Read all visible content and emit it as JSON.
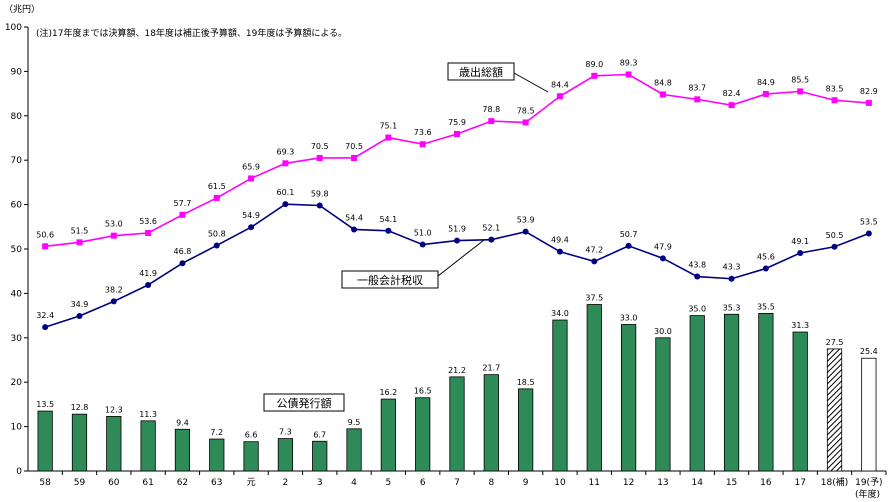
{
  "chart_data": {
    "type": "bar+line",
    "unit_label": "（兆円）",
    "note": "(注)17年度までは決算額、18年度は補正後予算額、19年度は予算額による。",
    "x_axis_unit": "(年度)",
    "ylim": [
      0,
      100
    ],
    "yticks": [
      "0",
      "10",
      "20",
      "30",
      "40",
      "50",
      "60",
      "70",
      "80",
      "90",
      "100"
    ],
    "grid": false,
    "categories": [
      "58",
      "59",
      "60",
      "61",
      "62",
      "63",
      "元",
      "2",
      "3",
      "4",
      "5",
      "6",
      "7",
      "8",
      "9",
      "10",
      "11",
      "12",
      "13",
      "14",
      "15",
      "16",
      "17",
      "18(補)",
      "19(予)"
    ],
    "series": [
      {
        "name": "歳出総額",
        "kind": "line",
        "color": "#ff00ff",
        "marker": "square",
        "values": [
          50.6,
          51.5,
          53.0,
          53.6,
          57.7,
          61.5,
          65.9,
          69.3,
          70.5,
          70.5,
          75.1,
          73.6,
          75.9,
          78.8,
          78.5,
          84.4,
          89.0,
          89.3,
          84.8,
          83.7,
          82.4,
          84.9,
          85.5,
          83.5,
          82.9
        ],
        "labels": [
          "50.6",
          "51.5",
          "53.0",
          "53.6",
          "57.7",
          "61.5",
          "65.9",
          "69.3",
          "70.5",
          "70.5",
          "75.1",
          "73.6",
          "75.9",
          "78.8",
          "78.5",
          "84.4",
          "89.0",
          "89.3",
          "84.8",
          "83.7",
          "82.4",
          "84.9",
          "85.5",
          "83.5",
          "82.9"
        ]
      },
      {
        "name": "一般会計税収",
        "kind": "line",
        "color": "#000080",
        "marker": "circle",
        "values": [
          32.4,
          34.9,
          38.2,
          41.9,
          46.8,
          50.8,
          54.9,
          60.1,
          59.8,
          54.4,
          54.1,
          51.0,
          51.9,
          52.1,
          53.9,
          49.4,
          47.2,
          50.7,
          47.9,
          43.8,
          43.3,
          45.6,
          49.1,
          50.5,
          53.5
        ],
        "labels": [
          "32.4",
          "34.9",
          "38.2",
          "41.9",
          "46.8",
          "50.8",
          "54.9",
          "60.1",
          "59.8",
          "54.4",
          "54.1",
          "51.0",
          "51.9",
          "52.1",
          "53.9",
          "49.4",
          "47.2",
          "50.7",
          "47.9",
          "43.8",
          "43.3",
          "45.6",
          "49.1",
          "50.5",
          "53.5"
        ]
      },
      {
        "name": "公債発行額",
        "kind": "bar",
        "color": "#2e8b57",
        "values": [
          13.5,
          12.8,
          12.3,
          11.3,
          9.4,
          7.2,
          6.6,
          7.3,
          6.7,
          9.5,
          16.2,
          16.5,
          21.2,
          21.7,
          18.5,
          34.0,
          37.5,
          33.0,
          30.0,
          35.0,
          35.3,
          35.5,
          31.3,
          27.5,
          25.4
        ],
        "labels": [
          "13.5",
          "12.8",
          "12.3",
          "11.3",
          "9.4",
          "7.2",
          "6.6",
          "7.3",
          "6.7",
          "9.5",
          "16.2",
          "16.5",
          "21.2",
          "21.7",
          "18.5",
          "34.0",
          "37.5",
          "33.0",
          "30.0",
          "35.0",
          "35.3",
          "35.5",
          "31.3",
          "27.5",
          "25.4"
        ],
        "bar_styles": [
          "solid",
          "solid",
          "solid",
          "solid",
          "solid",
          "solid",
          "solid",
          "solid",
          "solid",
          "solid",
          "solid",
          "solid",
          "solid",
          "solid",
          "solid",
          "solid",
          "solid",
          "solid",
          "solid",
          "solid",
          "solid",
          "solid",
          "solid",
          "hatched",
          "outline"
        ]
      }
    ]
  }
}
